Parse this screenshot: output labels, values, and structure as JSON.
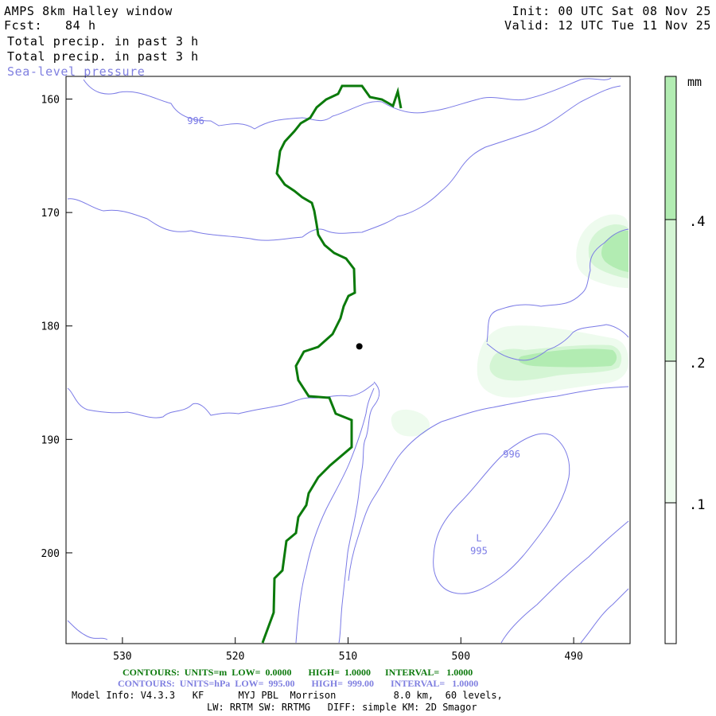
{
  "header": {
    "title": "AMPS 8km Halley window",
    "forecast": "Fcst:   84 h",
    "init": "Init: 00 UTC Sat 08 Nov 25",
    "valid": "Valid: 12 UTC Tue 11 Nov 25",
    "field1": "Total precip. in past 3 h",
    "field2": "Total precip. in past 3 h",
    "field3": "Sea-level pressure"
  },
  "chart_data": {
    "type": "contour-map",
    "x_axis": {
      "ticks": [
        "530",
        "520",
        "510",
        "500",
        "490"
      ],
      "range": [
        535,
        485
      ],
      "reversed": true
    },
    "y_axis": {
      "ticks": [
        "160",
        "170",
        "180",
        "190",
        "200"
      ],
      "range": [
        158,
        208
      ],
      "inverted": true
    },
    "pressure_labels": [
      {
        "text": "996",
        "x": 523.5,
        "y": 162.2
      },
      {
        "text": "996",
        "x": 495.5,
        "y": 191.6
      },
      {
        "text": "L",
        "x": 498.4,
        "y": 199.0
      },
      {
        "text": "995",
        "x": 498.4,
        "y": 200.1
      }
    ],
    "marker": {
      "x": 509,
      "y": 181.8
    },
    "colorbar": {
      "unit": "mm",
      "labels": [
        ".4",
        ".2",
        ".1"
      ],
      "bounds": [
        0,
        0.1,
        0.2,
        0.4,
        1.0
      ]
    },
    "contours_green": {
      "units": "m",
      "low": "0.0000",
      "high": "1.0000",
      "interval": "1.0000"
    },
    "contours_blue": {
      "units": "hPa",
      "low": "995.00",
      "high": "999.00",
      "interval": "1.0000"
    }
  },
  "colors": {
    "green_line": "#0b7a0b",
    "blue_line": "#7a7ae6",
    "precip_light": "#eefbee",
    "precip_mid": "#d4f5d4",
    "precip_dark": "#b2ecb2"
  },
  "footer": {
    "green_line": "CONTOURS:  UNITS=m  LOW=  0.0000       HIGH=  1.0000      INTERVAL=   1.0000",
    "blue_line": "CONTOURS:  UNITS=hPa  LOW=  995.00       HIGH=  999.00       INTERVAL=   1.0000",
    "model_info": "Model Info: V4.3.3   KF      MYJ PBL  Morrison          8.0 km,  60 levels,",
    "model_info2": "LW: RRTM SW: RRTMG   DIFF: simple KM: 2D Smagor"
  }
}
